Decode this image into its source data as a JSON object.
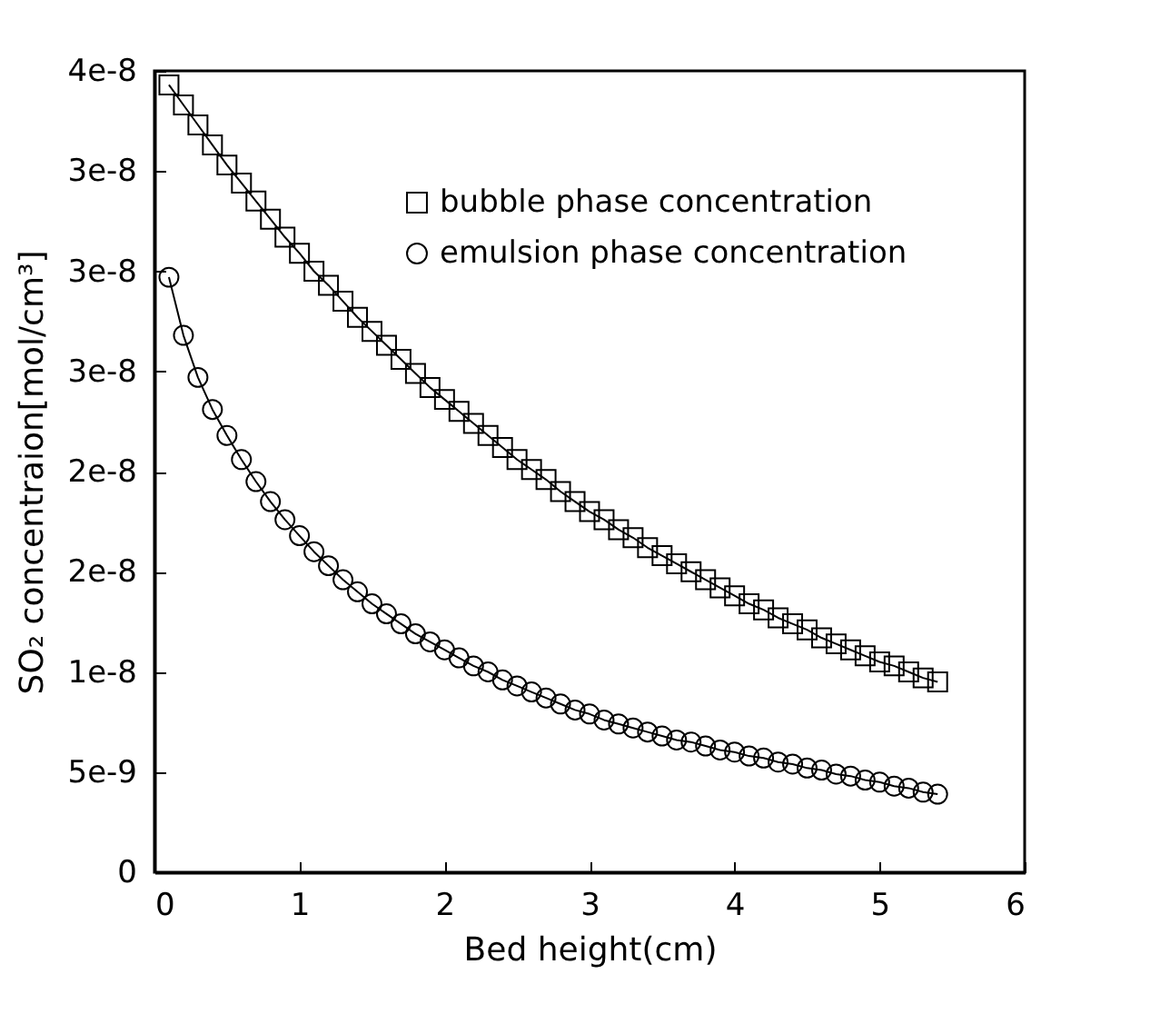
{
  "chart_data": {
    "type": "line",
    "xlabel": "Bed height(cm)",
    "ylabel": "SO₂ concentraion[mol/cm³]",
    "x": [
      0.1,
      0.2,
      0.3,
      0.4,
      0.5,
      0.6,
      0.7,
      0.8,
      0.9,
      1.0,
      1.1,
      1.2,
      1.3,
      1.4,
      1.5,
      1.6,
      1.7,
      1.8,
      1.9,
      2.0,
      2.1,
      2.2,
      2.3,
      2.4,
      2.5,
      2.6,
      2.7,
      2.8,
      2.9,
      3.0,
      3.1,
      3.2,
      3.3,
      3.4,
      3.5,
      3.6,
      3.7,
      3.8,
      3.9,
      4.0,
      4.1,
      4.2,
      4.3,
      4.4,
      4.5,
      4.6,
      4.7,
      4.8,
      4.9,
      5.0,
      5.1,
      5.2,
      5.3,
      5.4
    ],
    "series": [
      {
        "name": "bubble phase concentration",
        "color": "#000000",
        "marker": "square",
        "values": [
          3.93e-08,
          3.83e-08,
          3.73e-08,
          3.63e-08,
          3.53e-08,
          3.44e-08,
          3.35e-08,
          3.26e-08,
          3.17e-08,
          3.09e-08,
          3e-08,
          2.93e-08,
          2.85e-08,
          2.77e-08,
          2.7e-08,
          2.63e-08,
          2.56e-08,
          2.49e-08,
          2.42e-08,
          2.36e-08,
          2.3e-08,
          2.24e-08,
          2.18e-08,
          2.12e-08,
          2.06e-08,
          2.01e-08,
          1.96e-08,
          1.9e-08,
          1.85e-08,
          1.8e-08,
          1.76e-08,
          1.71e-08,
          1.67e-08,
          1.62e-08,
          1.58e-08,
          1.54e-08,
          1.5e-08,
          1.46e-08,
          1.42e-08,
          1.38e-08,
          1.34e-08,
          1.31e-08,
          1.27e-08,
          1.24e-08,
          1.21e-08,
          1.17e-08,
          1.14e-08,
          1.11e-08,
          1.08e-08,
          1.05e-08,
          1.03e-08,
          1e-08,
          9.7e-09,
          9.5e-09
        ]
      },
      {
        "name": "emulsion phase concentration",
        "color": "#000000",
        "marker": "circle",
        "values": [
          2.97e-08,
          2.68e-08,
          2.47e-08,
          2.31e-08,
          2.18e-08,
          2.06e-08,
          1.95e-08,
          1.85e-08,
          1.76e-08,
          1.68e-08,
          1.6e-08,
          1.53e-08,
          1.46e-08,
          1.4e-08,
          1.34e-08,
          1.29e-08,
          1.24e-08,
          1.19e-08,
          1.15e-08,
          1.11e-08,
          1.07e-08,
          1.03e-08,
          1e-08,
          9.6e-09,
          9.3e-09,
          9e-09,
          8.7e-09,
          8.4e-09,
          8.1e-09,
          7.9e-09,
          7.6e-09,
          7.4e-09,
          7.2e-09,
          7e-09,
          6.8e-09,
          6.6e-09,
          6.5e-09,
          6.3e-09,
          6.1e-09,
          6e-09,
          5.8e-09,
          5.7e-09,
          5.5e-09,
          5.4e-09,
          5.2e-09,
          5.1e-09,
          4.9e-09,
          4.8e-09,
          4.6e-09,
          4.5e-09,
          4.3e-09,
          4.2e-09,
          4e-09,
          3.9e-09
        ]
      }
    ],
    "xlim": [
      0,
      6
    ],
    "xticks": [
      0,
      1,
      2,
      3,
      4,
      5,
      6
    ],
    "ylim": [
      0,
      4e-08
    ],
    "yticks": [
      0,
      {
        "value": 5e-09,
        "label": "5e-9"
      },
      {
        "value": 1e-08,
        "label": "1e-8"
      },
      {
        "value": 1.5e-08,
        "label": "2e-8"
      },
      {
        "value": 2e-08,
        "label": "2e-8"
      },
      {
        "value": 2.5e-08,
        "label": "3e-8"
      },
      {
        "value": 3e-08,
        "label": "3e-8"
      },
      {
        "value": 3.5e-08,
        "label": "3e-8"
      },
      {
        "value": 4e-08,
        "label": "4e-8"
      }
    ],
    "grid": false,
    "legend": "top right",
    "line_style": "solid"
  }
}
